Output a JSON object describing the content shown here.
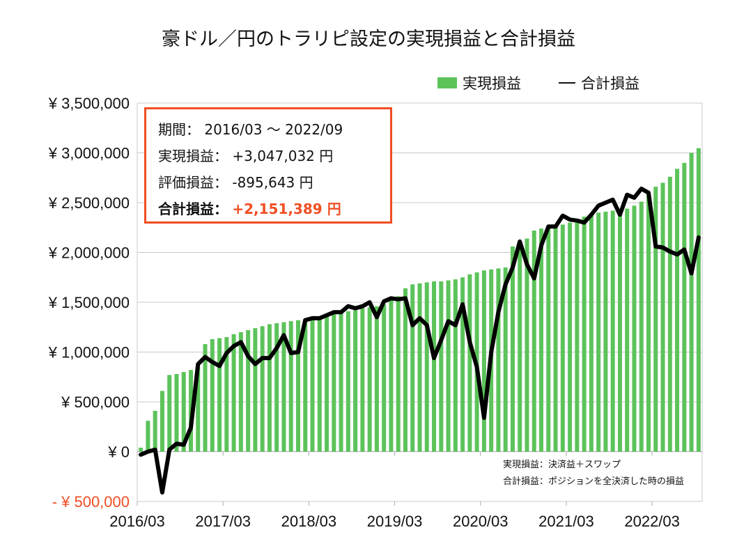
{
  "chart_data": {
    "type": "bar+line",
    "title": "豪ドル／円のトラリピ設定の実現損益と合計損益",
    "ylim": [
      -500000,
      3500000
    ],
    "y_ticks": [
      -500000,
      0,
      500000,
      1000000,
      1500000,
      2000000,
      2500000,
      3000000,
      3500000
    ],
    "y_tick_labels": [
      "- ¥ 500,000",
      "¥ 0",
      "¥ 500,000",
      "¥ 1,000,000",
      "¥ 1,500,000",
      "¥ 2,000,000",
      "¥ 2,500,000",
      "¥ 3,000,000",
      "¥ 3,500,000"
    ],
    "x_tick_labels": [
      "2016/03",
      "2017/03",
      "2018/03",
      "2019/03",
      "2020/03",
      "2021/03",
      "2022/03"
    ],
    "start_month": "2016/03",
    "end_month": "2022/09",
    "grid": "horizontal",
    "legend_position": "top-right",
    "colors": {
      "bars": "#5cc35a",
      "line": "#000000",
      "highlight": "#f04e23"
    },
    "series": [
      {
        "name": "実現損益",
        "type": "bar",
        "values": [
          40000,
          310000,
          410000,
          610000,
          770000,
          780000,
          800000,
          820000,
          850000,
          1080000,
          1130000,
          1140000,
          1150000,
          1180000,
          1200000,
          1220000,
          1240000,
          1260000,
          1280000,
          1290000,
          1300000,
          1310000,
          1320000,
          1330000,
          1340000,
          1350000,
          1370000,
          1390000,
          1400000,
          1410000,
          1420000,
          1440000,
          1450000,
          1460000,
          1480000,
          1520000,
          1560000,
          1640000,
          1680000,
          1690000,
          1700000,
          1710000,
          1710000,
          1720000,
          1730000,
          1750000,
          1780000,
          1800000,
          1820000,
          1830000,
          1840000,
          1850000,
          2060000,
          2110000,
          2140000,
          2220000,
          2240000,
          2260000,
          2270000,
          2280000,
          2300000,
          2330000,
          2360000,
          2380000,
          2400000,
          2410000,
          2420000,
          2430000,
          2440000,
          2470000,
          2510000,
          2580000,
          2660000,
          2700000,
          2760000,
          2840000,
          2900000,
          3000000,
          3047032
        ]
      },
      {
        "name": "合計損益",
        "type": "line",
        "values": [
          -30000,
          0,
          20000,
          -410000,
          20000,
          80000,
          70000,
          240000,
          880000,
          950000,
          900000,
          860000,
          990000,
          1060000,
          1100000,
          960000,
          880000,
          940000,
          940000,
          1040000,
          1170000,
          990000,
          1000000,
          1320000,
          1340000,
          1340000,
          1370000,
          1400000,
          1400000,
          1460000,
          1440000,
          1460000,
          1500000,
          1350000,
          1510000,
          1540000,
          1530000,
          1540000,
          1270000,
          1340000,
          1270000,
          940000,
          1120000,
          1310000,
          1270000,
          1480000,
          1100000,
          850000,
          340000,
          1000000,
          1400000,
          1680000,
          1850000,
          2110000,
          1880000,
          1740000,
          2070000,
          2260000,
          2260000,
          2370000,
          2330000,
          2320000,
          2300000,
          2380000,
          2470000,
          2500000,
          2530000,
          2380000,
          2580000,
          2550000,
          2640000,
          2600000,
          2060000,
          2050000,
          2010000,
          1980000,
          2030000,
          1790000,
          2151389
        ]
      }
    ],
    "info_box": {
      "period_label": "期間：",
      "period_value": "2016/03 ～ 2022/09",
      "realized_label": "実現損益：",
      "realized_value": "+3,047,032 円",
      "unrealized_label": "評価損益：",
      "unrealized_value": "-895,643 円",
      "total_label": "合計損益：",
      "total_value": "+2,151,389 円"
    },
    "notes": [
      "実現損益：決済益＋スワップ",
      "合計損益：ポジションを全決済した時の損益"
    ]
  }
}
